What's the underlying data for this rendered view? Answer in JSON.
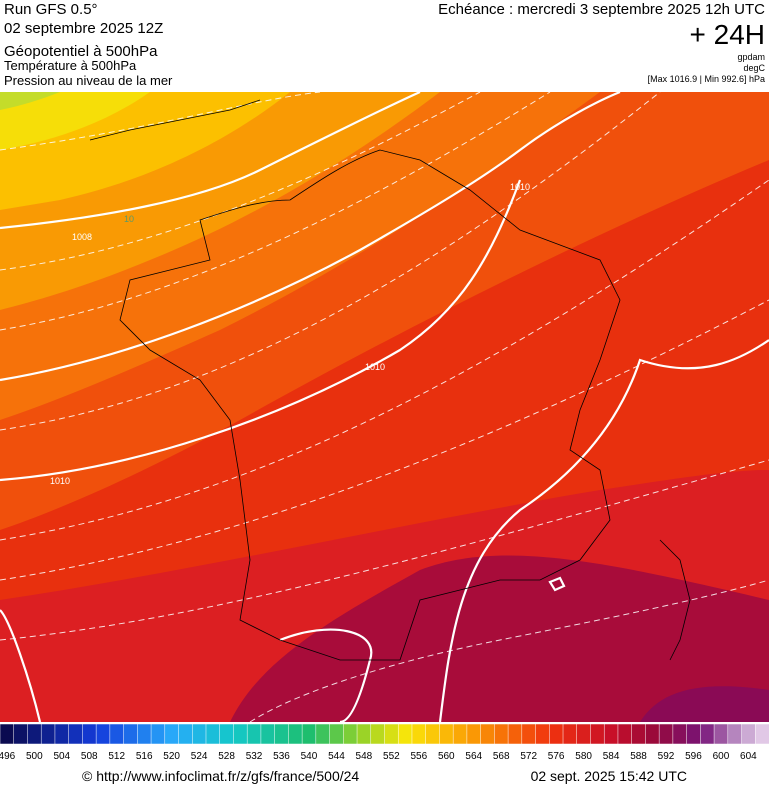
{
  "header": {
    "run": "Run GFS 0.5°",
    "date": "02 septembre 2025 12Z",
    "title": "Géopotentiel à 500hPa",
    "subtitle1": "Température à 500hPa",
    "subtitle2": "Pression au niveau de la mer",
    "echeance": "Echéance : mercredi 3 septembre 2025 12h UTC",
    "lead": "+ 24H",
    "unit1": "gpdam",
    "unit2": "degC",
    "range": "[Max 1016.9 | Min 992.6] hPa"
  },
  "map": {
    "contour_labels": [
      "1008",
      "1010",
      "1010",
      "1010",
      "10"
    ]
  },
  "legend": {
    "labels": [
      "496",
      "500",
      "504",
      "508",
      "512",
      "516",
      "520",
      "524",
      "528",
      "532",
      "536",
      "540",
      "544",
      "548",
      "552",
      "556",
      "560",
      "564",
      "568",
      "572",
      "576",
      "580",
      "584",
      "588",
      "592",
      "596",
      "600",
      "604"
    ]
  },
  "footer": {
    "url": "© http://www.infoclimat.fr/z/gfs/france/500/24",
    "timestamp": "02 sept. 2025 15:42 UTC"
  }
}
